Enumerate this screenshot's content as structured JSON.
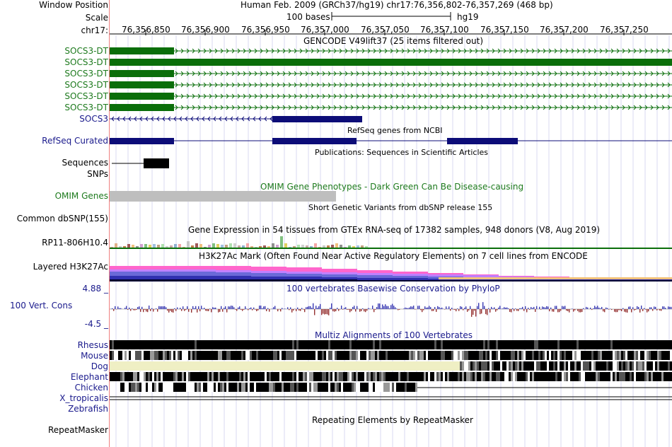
{
  "header": {
    "window_position_label": "Window Position",
    "window_position": "Human Feb. 2009 (GRCh37/hg19)   chr17:76,356,802-76,357,269 (468 bp)",
    "scale_label": "Scale",
    "scale_text": "100 bases",
    "scale_assembly": "hg19",
    "chrom_label": "chr17:",
    "ticks": [
      "76,356,850",
      "76,356,900",
      "76,356,950",
      "76,357,000",
      "76,357,050",
      "76,357,100",
      "76,357,150",
      "76,357,200",
      "76,357,250"
    ]
  },
  "tracks": {
    "gencode_title": "GENCODE V49lift37 (25 items filtered out)",
    "gencode_items": [
      "SOCS3-DT",
      "SOCS3-DT",
      "SOCS3-DT",
      "SOCS3-DT",
      "SOCS3-DT",
      "SOCS3-DT"
    ],
    "socs3_label": "SOCS3",
    "refseq_title": "RefSeq genes from NCBI",
    "refseq_label": "RefSeq Curated",
    "publications_title": "Publications: Sequences in Scientific Articles",
    "sequences_label": "Sequences",
    "snps_label": "SNPs",
    "omim_title": "OMIM Gene Phenotypes - Dark Green Can Be Disease-causing",
    "omim_label": "OMIM Genes",
    "dbsnp_title": "Short Genetic Variants from dbSNP release 155",
    "dbsnp_label": "Common dbSNP(155)",
    "gtex_title": "Gene Expression in 54 tissues from GTEx RNA-seq of 17382 samples, 948 donors (V8, Aug 2019)",
    "gtex_label": "RP11-806H10.4",
    "h3k27_title": "H3K27Ac Mark (Often Found Near Active Regulatory Elements) on 7 cell lines from ENCODE",
    "h3k27_label": "Layered H3K27Ac",
    "cons_title": "100 vertebrates Basewise Conservation by PhyloP",
    "cons_label": "100 Vert. Cons",
    "cons_max": "4.88 _",
    "cons_min": "-4.5 _",
    "multiz_title": "Multiz Alignments of 100 Vertebrates",
    "species": [
      "Rhesus",
      "Mouse",
      "Dog",
      "Elephant",
      "Chicken",
      "X_tropicalis",
      "Zebrafish"
    ],
    "repeat_title": "Repeating Elements by RepeatMasker",
    "repeat_label": "RepeatMasker"
  },
  "colors": {
    "gencode": "#0a6e0a",
    "refseq": "#0c0c78",
    "label_blue": "#1a1a8c",
    "label_green": "#1d7a1d",
    "omim_gray": "#bebebe",
    "cons_pos": "#3c3cb4",
    "cons_neg": "#963232",
    "grid": "#d8d8f0"
  }
}
